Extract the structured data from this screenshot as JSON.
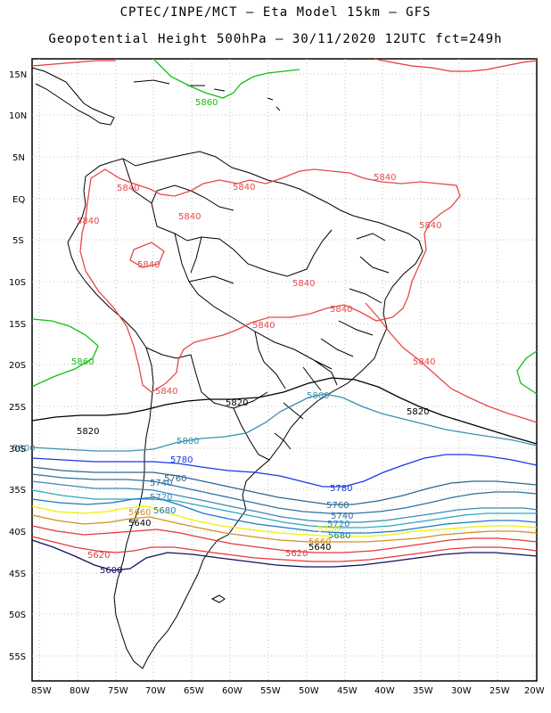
{
  "header": {
    "line1": "CPTEC/INPE/MCT –  Eta Model 15km – GFS",
    "line2": "Geopotential Height 500hPa – 30/11/2020 12UTC fct=249h"
  },
  "axes": {
    "lat_labels": [
      "15N",
      "10N",
      "5N",
      "EQ",
      "5S",
      "10S",
      "15S",
      "20S",
      "25S",
      "30S",
      "35S",
      "40S",
      "45S",
      "50S",
      "55S"
    ],
    "lon_labels": [
      "85W",
      "80W",
      "75W",
      "70W",
      "65W",
      "60W",
      "55W",
      "50W",
      "45W",
      "40W",
      "35W",
      "30W",
      "25W",
      "20W"
    ]
  },
  "colors": {
    "c5600": "#101060",
    "c5620": "#e83838",
    "c5640": "#d09020",
    "c5660": "#f0f000",
    "c5680": "#1a7ac0",
    "c5700": "#2aa8c0",
    "c5720": "#3a8ab8",
    "c5740": "#3070a0",
    "c5760": "#2a6890",
    "c5780": "#1838e8",
    "c5800": "#3a90b0",
    "c5820": "#000000",
    "c5840": "#e84848",
    "c5860": "#10c010"
  },
  "contour_labels": {
    "l5860_a": "5860",
    "l5860_b": "5860",
    "l5840_a": "5840",
    "l5840_b": "5840",
    "l5840_c": "5840",
    "l5840_d": "5840",
    "l5840_e": "5840",
    "l5840_f": "5840",
    "l5840_g": "5840",
    "l5840_h": "5840",
    "l5840_i": "5840",
    "l5840_j": "5840",
    "l5840_k": "5840",
    "l5840_l": "5840",
    "l5820_a": "5820",
    "l5820_b": "5820",
    "l5820_c": "5820",
    "l5800_a": "5800",
    "l5800_b": "5800",
    "l5800_c": "5800",
    "l5780_a": "5780",
    "l5780_b": "5780",
    "l5760_a": "5760",
    "l5760_b": "5760",
    "l5740_a": "5740",
    "l5740_b": "5740",
    "l5720_a": "5720",
    "l5720_b": "5720",
    "l5700_a": "5700",
    "l5680_a": "5680",
    "l5680_b": "5680",
    "l5660_a": "5660",
    "l5660_b": "5660",
    "l5640_a": "5640",
    "l5640_b": "5640",
    "l5620_a": "5620",
    "l5620_b": "5620",
    "l5600_a": "5600"
  }
}
